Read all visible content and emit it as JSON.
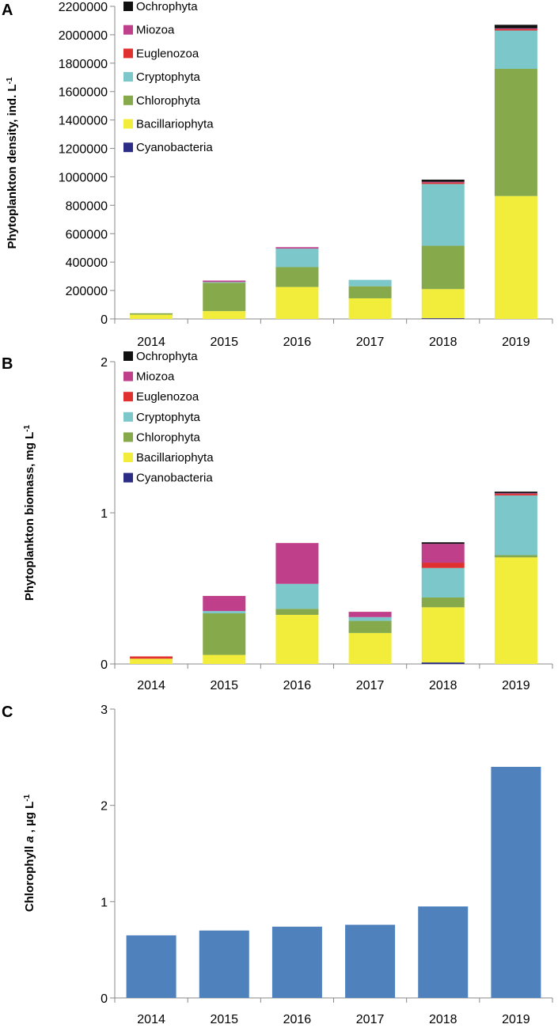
{
  "chart_data": [
    {
      "panel": "A",
      "type": "bar",
      "stacked": true,
      "ylabel": "Phytoplankton density, ind. L",
      "ylabel_sup": "-1",
      "ylim": [
        0,
        2200000
      ],
      "yticks": [
        0,
        200000,
        400000,
        600000,
        800000,
        1000000,
        1200000,
        1400000,
        1600000,
        1800000,
        2000000,
        2200000
      ],
      "categories": [
        "2014",
        "2015",
        "2016",
        "2017",
        "2018",
        "2019"
      ],
      "legend_position": "top-left",
      "series": [
        {
          "name": "Cyanobacteria",
          "color": "#2B2C84",
          "values": [
            0,
            0,
            0,
            0,
            5000,
            0
          ]
        },
        {
          "name": "Bacillariophyta",
          "color": "#F2ED3B",
          "values": [
            30000,
            55000,
            225000,
            145000,
            205000,
            865000
          ]
        },
        {
          "name": "Chlorophyta",
          "color": "#86A94B",
          "values": [
            10000,
            200000,
            140000,
            85000,
            305000,
            895000
          ]
        },
        {
          "name": "Cryptophyta",
          "color": "#7BC7C9",
          "values": [
            0,
            5000,
            130000,
            45000,
            435000,
            270000
          ]
        },
        {
          "name": "Euglenozoa",
          "color": "#E03030",
          "values": [
            0,
            0,
            0,
            0,
            10000,
            10000
          ]
        },
        {
          "name": "Miozoa",
          "color": "#BF3F8A",
          "values": [
            0,
            10000,
            10000,
            0,
            5000,
            5000
          ]
        },
        {
          "name": "Ochrophyta",
          "color": "#111111",
          "values": [
            0,
            0,
            0,
            0,
            15000,
            25000
          ]
        }
      ]
    },
    {
      "panel": "B",
      "type": "bar",
      "stacked": true,
      "ylabel": "Phytoplankton biomass, mg L",
      "ylabel_sup": "-1",
      "ylim": [
        0,
        2
      ],
      "yticks": [
        0,
        1,
        2
      ],
      "categories": [
        "2014",
        "2015",
        "2016",
        "2017",
        "2018",
        "2019"
      ],
      "legend_position": "top-left",
      "series": [
        {
          "name": "Cyanobacteria",
          "color": "#2B2C84",
          "values": [
            0,
            0,
            0,
            0,
            0.01,
            0
          ]
        },
        {
          "name": "Bacillariophyta",
          "color": "#F2ED3B",
          "values": [
            0.035,
            0.06,
            0.325,
            0.205,
            0.365,
            0.705
          ]
        },
        {
          "name": "Chlorophyta",
          "color": "#86A94B",
          "values": [
            0,
            0.275,
            0.04,
            0.08,
            0.065,
            0.015
          ]
        },
        {
          "name": "Cryptophyta",
          "color": "#7BC7C9",
          "values": [
            0,
            0.015,
            0.165,
            0.025,
            0.195,
            0.395
          ]
        },
        {
          "name": "Euglenozoa",
          "color": "#E03030",
          "values": [
            0.015,
            0,
            0,
            0,
            0.035,
            0.01
          ]
        },
        {
          "name": "Miozoa",
          "color": "#BF3F8A",
          "values": [
            0,
            0.1,
            0.27,
            0.035,
            0.125,
            0.005
          ]
        },
        {
          "name": "Ochrophyta",
          "color": "#111111",
          "values": [
            0,
            0,
            0,
            0,
            0.01,
            0.01
          ]
        }
      ]
    },
    {
      "panel": "C",
      "type": "bar",
      "stacked": false,
      "ylabel_pre": "Chlorophyll ",
      "ylabel_italic": "a",
      "ylabel_post": " ,  µg L",
      "ylabel_sup": "-1",
      "ylim": [
        0,
        3
      ],
      "yticks": [
        0,
        1,
        2,
        3
      ],
      "categories": [
        "2014",
        "2015",
        "2016",
        "2017",
        "2018",
        "2019"
      ],
      "series": [
        {
          "name": "Chlorophyll a",
          "color": "#4F81BD",
          "values": [
            0.65,
            0.7,
            0.74,
            0.76,
            0.95,
            2.4
          ]
        }
      ]
    }
  ]
}
